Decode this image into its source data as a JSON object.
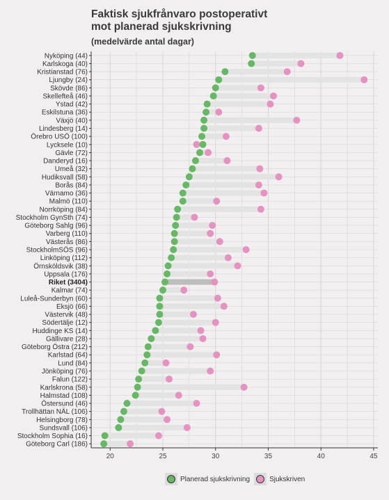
{
  "title_line1": "Faktisk sjukfrånvaro postoperativt",
  "title_line2": "mot planerad sjukskrivning",
  "subtitle": "(medelvärde antal dagar)",
  "legend": {
    "planned": "Planerad sjukskrivning",
    "actual": "Sjukskriven"
  },
  "colors": {
    "planned": "#66b865",
    "actual": "#e592c1",
    "segment": "#e3e3e3",
    "segment_highlight": "#bdbdbd",
    "background": "#f2eff1",
    "grid": "#d7d4d6"
  },
  "chart_data": {
    "type": "dumbbell",
    "title": "Faktisk sjukfrånvaro postoperativt mot planerad sjukskrivning",
    "subtitle": "(medelvärde antal dagar)",
    "xlabel": "",
    "ylabel": "",
    "xlim": [
      18.2,
      45.4
    ],
    "xticks": [
      20,
      25,
      30,
      35,
      40,
      45
    ],
    "grid": true,
    "legend_position": "bottom",
    "highlight": "Riket (3404)",
    "series_names": [
      "Planerad sjukskrivning",
      "Sjukskriven"
    ],
    "categories": [
      "Nyköping (44)",
      "Karlskoga (40)",
      "Kristianstad (76)",
      "Ljungby (24)",
      "Skövde (86)",
      "Skellefteå (46)",
      "Ystad (42)",
      "Eskilstuna (36)",
      "Växjö (40)",
      "Lindesberg (14)",
      "Örebro USÖ (100)",
      "Lycksele (10)",
      "Gävle (72)",
      "Danderyd (16)",
      "Umeå (32)",
      "Hudiksvall (58)",
      "Borås (84)",
      "Värnamo (36)",
      "Malmö (110)",
      "Norrköping (84)",
      "Stockholm GynSth (74)",
      "Göteborg Sahlg (96)",
      "Varberg (110)",
      "Västerås (86)",
      "StockholmSÖS (96)",
      "Linköping (112)",
      "Örnsköldsvik (38)",
      "Uppsala (176)",
      "Riket (3404)",
      "Kalmar (74)",
      "Luleå-Sunderbyn (60)",
      "Eksjö (66)",
      "Västervik (48)",
      "Södertälje (12)",
      "Huddinge KS (14)",
      "Gällivare (28)",
      "Göteborg Östra (212)",
      "Karlstad (64)",
      "Lund (84)",
      "Jönköping (76)",
      "Falun (122)",
      "Karlskrona (58)",
      "Halmstad (108)",
      "Östersund (46)",
      "Trollhättan NÄL (106)",
      "Helsingborg (78)",
      "Sundsvall (106)",
      "Stockholm Sophia (16)",
      "Göteborg Carl (186)"
    ],
    "planned": [
      33.5,
      33.4,
      30.9,
      30.3,
      30.0,
      29.8,
      29.2,
      29.1,
      28.9,
      28.9,
      28.7,
      28.8,
      28.5,
      28.1,
      27.8,
      27.5,
      27.2,
      26.9,
      26.9,
      26.4,
      26.3,
      26.2,
      26.1,
      26.1,
      26.0,
      25.8,
      25.5,
      25.4,
      25.2,
      25.0,
      24.7,
      24.7,
      24.7,
      24.6,
      24.3,
      23.9,
      23.6,
      23.5,
      23.3,
      23.0,
      22.7,
      22.6,
      22.4,
      21.6,
      21.3,
      21.0,
      20.8,
      19.5,
      19.4
    ],
    "actual": [
      41.8,
      38.1,
      36.8,
      44.1,
      34.3,
      35.5,
      35.2,
      30.3,
      37.7,
      34.1,
      31.0,
      28.2,
      29.3,
      31.1,
      34.2,
      36.0,
      34.1,
      34.6,
      30.1,
      34.3,
      28.0,
      29.7,
      29.5,
      30.4,
      32.9,
      31.2,
      32.1,
      29.5,
      29.9,
      27.0,
      30.2,
      30.8,
      27.9,
      30.0,
      28.6,
      28.8,
      27.6,
      30.1,
      25.3,
      29.5,
      25.6,
      32.7,
      26.5,
      28.2,
      24.9,
      25.4,
      27.3,
      24.6,
      21.9
    ]
  }
}
